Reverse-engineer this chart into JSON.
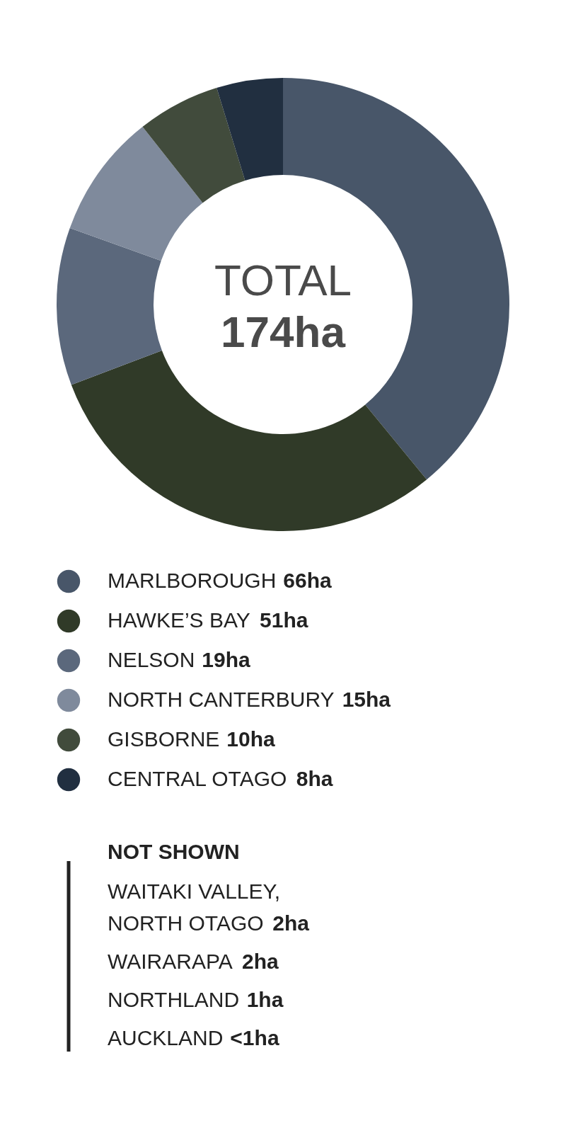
{
  "chart_data": {
    "type": "donut",
    "categories": [
      "MARLBOROUGH",
      "HAWKE’S BAY",
      "NELSON",
      "NORTH CANTERBURY",
      "GISBORNE",
      "CENTRAL OTAGO"
    ],
    "values": [
      66,
      51,
      19,
      15,
      10,
      8
    ],
    "colors": [
      "#485669",
      "#303a28",
      "#5b687c",
      "#7f8a9c",
      "#414b3c",
      "#212f40"
    ],
    "value_labels": [
      "66ha",
      "51ha",
      "19ha",
      "15ha",
      "10ha",
      "8ha"
    ],
    "legend": "bottom",
    "annotations": [
      "TOTAL",
      "174ha",
      "NOT SHOWN",
      "WAITAKI VALLEY,\nNORTH OTAGO 2ha",
      "WAIRARAPA 2ha",
      "NORTHLAND 1ha",
      "AUCKLAND <1ha"
    ]
  }
}
